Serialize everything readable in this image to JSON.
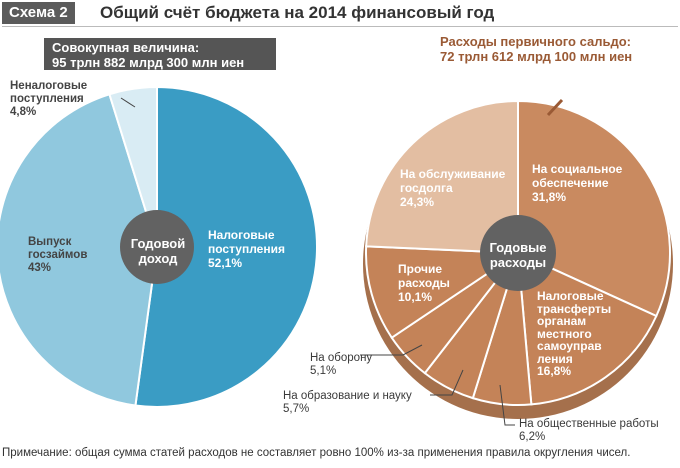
{
  "header": {
    "badge": "Схема 2",
    "title": "Общий счёт бюджета на 2014 финансовый год"
  },
  "left_chart": {
    "total_line1": "Совокупная величина:",
    "total_line2": "95 трлн 882 млрд 300 млн иен",
    "center_line1": "Годовой",
    "center_line2": "доход"
  },
  "right_chart": {
    "primary_line1": "Расходы первичного сальдо:",
    "primary_line2": "72 трлн 612 млрд 100 млн иен",
    "center_line1": "Годовые",
    "center_line2": "расходы"
  },
  "footnote": "Примечание: общая сумма статей расходов не составляет ровно 100% из-за применения правила округления чисел.",
  "colors": {
    "tax": "#3a9cc4",
    "bonds": "#90c8de",
    "nontax": "#d9ecf4",
    "center": "#626262",
    "social": "#c98a60",
    "debt": "#e3bea2",
    "other": "#c48358",
    "ring": "#a5704c"
  },
  "chart_data": [
    {
      "type": "pie",
      "categories": [
        "Налоговые поступления",
        "Выпуск госзаймов",
        "Неналоговые поступления"
      ],
      "values": [
        52.1,
        43,
        4.8
      ],
      "labels": [
        {
          "lines": [
            "Налоговые",
            "поступления"
          ],
          "value": "52,1%"
        },
        {
          "lines": [
            "Выпуск",
            "госзаймов"
          ],
          "value": "43%"
        },
        {
          "lines": [
            "Неналоговые",
            "поступления"
          ],
          "value": "4,8%"
        }
      ]
    },
    {
      "type": "pie",
      "categories": [
        "На социальное обеспечение",
        "Налоговые трансферты органам местного самоуправления",
        "На общественные работы",
        "На образование и науку",
        "На оборону",
        "Прочие расходы",
        "На обслуживание госдолга"
      ],
      "values": [
        31.8,
        16.8,
        6.2,
        5.7,
        5.1,
        10.1,
        24.3
      ],
      "labels": [
        {
          "lines": [
            "На социальное",
            "обеспечение"
          ],
          "value": "31,8%"
        },
        {
          "lines": [
            "Налоговые",
            "трансферты",
            "органам",
            "местного",
            "самоуправ",
            "ления"
          ],
          "value": "16,8%"
        },
        {
          "lines": [
            "На общественные работы"
          ],
          "value": "6,2%"
        },
        {
          "lines": [
            "На образование и науку"
          ],
          "value": "5,7%"
        },
        {
          "lines": [
            "На оборону"
          ],
          "value": "5,1%"
        },
        {
          "lines": [
            "Прочие",
            "расходы"
          ],
          "value": "10,1%"
        },
        {
          "lines": [
            "На обслуживание",
            "госдолга"
          ],
          "value": "24,3%"
        }
      ]
    }
  ]
}
